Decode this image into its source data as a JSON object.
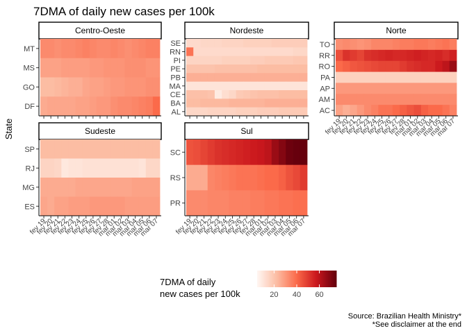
{
  "chart_data": {
    "type": "heatmap",
    "title": "7DMA of daily new cases per 100k",
    "ylabel": "State",
    "legend": {
      "title_line1": "7DMA of daily",
      "title_line2": "new cases per 100k",
      "ticks": [
        "20",
        "40",
        "60"
      ],
      "range": [
        5,
        75
      ],
      "placement": "bottom",
      "low_color": "#fee0d2",
      "high_color": "#8b0015"
    },
    "source_line1": "Source: Brazilian Health Ministry*",
    "source_line2": "*See disclaimer at the end",
    "dates": [
      "fev 19",
      "fev 20",
      "fev 21",
      "fev 22",
      "fev 23",
      "fev 24",
      "fev 25",
      "fev 26",
      "fev 27",
      "fev 28",
      "mar 01",
      "mar 02",
      "mar 03",
      "mar 04",
      "mar 05",
      "mar 06",
      "mar 07"
    ],
    "panels": [
      {
        "region": "Centro-Oeste",
        "states": [
          {
            "state": "MT",
            "values": [
              33,
              33,
              32,
              33,
              33,
              34,
              35,
              34,
              33,
              33,
              34,
              33,
              32,
              33,
              34,
              35,
              35
            ]
          },
          {
            "state": "MS",
            "values": [
              28,
              28,
              28,
              29,
              29,
              29,
              29,
              30,
              30,
              31,
              31,
              31,
              32,
              32,
              32,
              31,
              31
            ]
          },
          {
            "state": "GO",
            "values": [
              22,
              22,
              23,
              24,
              25,
              25,
              27,
              28,
              28,
              29,
              30,
              30,
              31,
              31,
              31,
              32,
              32
            ]
          },
          {
            "state": "DF",
            "values": [
              26,
              27,
              27,
              27,
              27,
              28,
              28,
              29,
              30,
              30,
              32,
              33,
              33,
              34,
              35,
              36,
              40
            ]
          }
        ]
      },
      {
        "region": "Nordeste",
        "states": [
          {
            "state": "SE",
            "values": [
              13,
              13,
              14,
              14,
              14,
              15,
              15,
              15,
              16,
              16,
              16,
              16,
              17,
              17,
              17,
              17,
              17
            ]
          },
          {
            "state": "RN",
            "values": [
              38,
              13,
              13,
              13,
              13,
              13,
              13,
              13,
              13,
              13,
              13,
              13,
              13,
              13,
              13,
              14,
              14
            ]
          },
          {
            "state": "PI",
            "values": [
              15,
              15,
              15,
              15,
              15,
              16,
              16,
              16,
              16,
              17,
              17,
              18,
              18,
              18,
              18,
              19,
              19
            ]
          },
          {
            "state": "PE",
            "values": [
              20,
              20,
              20,
              20,
              21,
              21,
              21,
              21,
              21,
              21,
              22,
              22,
              22,
              22,
              22,
              22,
              22
            ]
          },
          {
            "state": "PB",
            "values": [
              25,
              25,
              25,
              25,
              25,
              25,
              25,
              25,
              25,
              25,
              25,
              25,
              25,
              25,
              25,
              25,
              25
            ]
          },
          {
            "state": "MA",
            "values": [
              10,
              10,
              10,
              10,
              10,
              10,
              10,
              10,
              10,
              10,
              10,
              10,
              10,
              10,
              10,
              10,
              10
            ]
          },
          {
            "state": "CE",
            "values": [
              21,
              21,
              21,
              20,
              8,
              12,
              14,
              18,
              19,
              20,
              21,
              21,
              21,
              22,
              22,
              22,
              22
            ]
          },
          {
            "state": "BA",
            "values": [
              22,
              22,
              23,
              23,
              23,
              23,
              24,
              24,
              24,
              24,
              24,
              25,
              25,
              25,
              25,
              25,
              25
            ]
          },
          {
            "state": "AL",
            "values": [
              14,
              14,
              14,
              15,
              15,
              15,
              15,
              16,
              16,
              16,
              17,
              17,
              17,
              18,
              18,
              18,
              18
            ]
          }
        ]
      },
      {
        "region": "Norte",
        "states": [
          {
            "state": "TO",
            "values": [
              32,
              33,
              32,
              31,
              32,
              34,
              34,
              34,
              35,
              36,
              36,
              37,
              37,
              36,
              37,
              38,
              36
            ]
          },
          {
            "state": "RR",
            "values": [
              46,
              52,
              50,
              48,
              52,
              53,
              54,
              55,
              54,
              54,
              55,
              56,
              55,
              54,
              55,
              53,
              56
            ]
          },
          {
            "state": "RO",
            "values": [
              40,
              42,
              44,
              45,
              46,
              47,
              48,
              48,
              48,
              50,
              52,
              53,
              54,
              54,
              57,
              60,
              66
            ]
          },
          {
            "state": "PA",
            "values": [
              16,
              16,
              16,
              16,
              16,
              16,
              16,
              16,
              16,
              16,
              16,
              16,
              16,
              16,
              16,
              16,
              16
            ]
          },
          {
            "state": "AP",
            "values": [
              30,
              30,
              30,
              30,
              30,
              30,
              30,
              30,
              30,
              30,
              30,
              30,
              30,
              30,
              30,
              30,
              30
            ]
          },
          {
            "state": "AM",
            "values": [
              33,
              33,
              33,
              33,
              33,
              33,
              33,
              33,
              33,
              33,
              33,
              33,
              33,
              33,
              33,
              33,
              33
            ]
          },
          {
            "state": "AC",
            "values": [
              28,
              25,
              27,
              30,
              33,
              35,
              38,
              38,
              40,
              42,
              44,
              46,
              42,
              40,
              40,
              38,
              35
            ]
          }
        ]
      },
      {
        "region": "Sudeste",
        "states": [
          {
            "state": "SP",
            "values": [
              22,
              22,
              22,
              22,
              22,
              22,
              22,
              22,
              22,
              22,
              22,
              22,
              22,
              22,
              22,
              22,
              22
            ]
          },
          {
            "state": "RJ",
            "values": [
              15,
              15,
              14,
              9,
              10,
              10,
              11,
              11,
              11,
              11,
              11,
              11,
              11,
              11,
              10,
              14,
              14
            ]
          },
          {
            "state": "MG",
            "values": [
              26,
              26,
              26,
              26,
              26,
              27,
              27,
              27,
              27,
              27,
              27,
              27,
              27,
              28,
              28,
              28,
              28
            ]
          },
          {
            "state": "ES",
            "values": [
              27,
              26,
              28,
              28,
              29,
              29,
              29,
              30,
              30,
              30,
              30,
              30,
              29,
              29,
              29,
              29,
              29
            ]
          }
        ]
      },
      {
        "region": "Sul",
        "states": [
          {
            "state": "SC",
            "values": [
              45,
              46,
              48,
              50,
              52,
              53,
              54,
              55,
              56,
              57,
              58,
              60,
              66,
              70,
              74,
              76,
              76
            ]
          },
          {
            "state": "RS",
            "values": [
              26,
              26,
              26,
              34,
              35,
              36,
              37,
              38,
              38,
              38,
              39,
              40,
              40,
              42,
              45,
              47,
              50
            ]
          },
          {
            "state": "PR",
            "values": [
              33,
              33,
              33,
              34,
              34,
              34,
              35,
              35,
              35,
              36,
              36,
              37,
              37,
              38,
              38,
              39,
              39
            ]
          }
        ]
      }
    ]
  }
}
